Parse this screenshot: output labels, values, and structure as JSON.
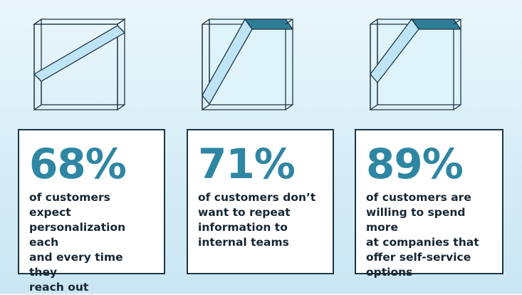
{
  "colors": {
    "accent": "#2f86a3",
    "text_dark": "#162633",
    "outline": "#1d3546",
    "cube_fill": "#dff4fa",
    "band_fill": "#bfe4f6",
    "cap_fill": "#2e7d97"
  },
  "stats": [
    {
      "percent": "68%",
      "text": "of customers expect\npersonalization each\nand every time they\nreach out"
    },
    {
      "percent": "71%",
      "text": "of customers don’t\nwant to repeat\ninformation to\ninternal teams"
    },
    {
      "percent": "89%",
      "text": "of customers are\nwilling to spend more\nat companies that\noffer self-service\noptions"
    }
  ],
  "illustrations": [
    {
      "icon": "glass-cube-fill-low-icon"
    },
    {
      "icon": "glass-cube-fill-mid-icon"
    },
    {
      "icon": "glass-cube-fill-high-icon"
    }
  ]
}
